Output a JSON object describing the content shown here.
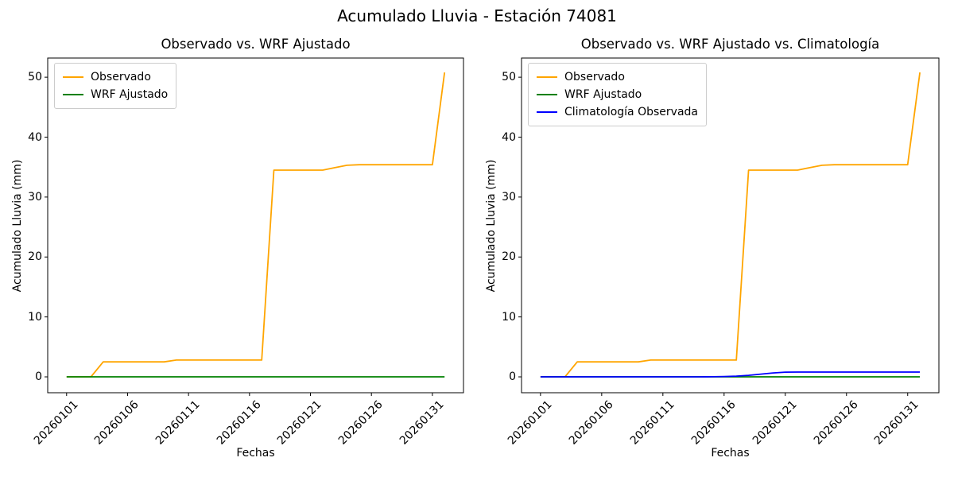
{
  "suptitle": "Acumulado Lluvia - Estación 74081",
  "chart_data": [
    {
      "type": "line",
      "title": "Observado vs. WRF Ajustado",
      "xlabel": "Fechas",
      "ylabel": "Acumulado Lluvia (mm)",
      "grid": false,
      "legend_position": "upper left",
      "x_tick_labels": [
        "20260101",
        "20260106",
        "20260111",
        "20260116",
        "20260121",
        "20260126",
        "20260131"
      ],
      "x_tick_indices": [
        0,
        5,
        10,
        15,
        20,
        25,
        30
      ],
      "y_ticks": [
        0,
        10,
        20,
        30,
        40,
        50
      ],
      "xlim": [
        -1.55,
        32.55
      ],
      "ylim": [
        -2.65,
        53.2
      ],
      "x": [
        "20260101",
        "20260102",
        "20260103",
        "20260104",
        "20260105",
        "20260106",
        "20260107",
        "20260108",
        "20260109",
        "20260110",
        "20260111",
        "20260112",
        "20260113",
        "20260114",
        "20260115",
        "20260116",
        "20260117",
        "20260118",
        "20260119",
        "20260120",
        "20260121",
        "20260122",
        "20260123",
        "20260124",
        "20260125",
        "20260126",
        "20260127",
        "20260128",
        "20260129",
        "20260130",
        "20260131",
        "20260201"
      ],
      "series": [
        {
          "name": "Observado",
          "color": "#FFA500",
          "values": [
            0,
            0,
            0,
            2.5,
            2.5,
            2.5,
            2.5,
            2.5,
            2.5,
            2.8,
            2.8,
            2.8,
            2.8,
            2.8,
            2.8,
            2.8,
            2.8,
            34.5,
            34.5,
            34.5,
            34.5,
            34.5,
            34.9,
            35.3,
            35.4,
            35.4,
            35.4,
            35.4,
            35.4,
            35.4,
            35.4,
            50.8
          ]
        },
        {
          "name": "WRF Ajustado",
          "color": "#008000",
          "values": [
            0,
            0,
            0,
            0,
            0,
            0,
            0,
            0,
            0,
            0,
            0,
            0,
            0,
            0,
            0,
            0,
            0,
            0,
            0,
            0,
            0,
            0,
            0,
            0,
            0,
            0,
            0,
            0,
            0,
            0,
            0,
            0
          ]
        }
      ]
    },
    {
      "type": "line",
      "title": "Observado vs. WRF Ajustado vs. Climatología",
      "xlabel": "Fechas",
      "ylabel": "Acumulado Lluvia (mm)",
      "grid": false,
      "legend_position": "upper left",
      "x_tick_labels": [
        "20260101",
        "20260106",
        "20260111",
        "20260116",
        "20260121",
        "20260126",
        "20260131"
      ],
      "x_tick_indices": [
        0,
        5,
        10,
        15,
        20,
        25,
        30
      ],
      "y_ticks": [
        0,
        10,
        20,
        30,
        40,
        50
      ],
      "xlim": [
        -1.55,
        32.55
      ],
      "ylim": [
        -2.65,
        53.2
      ],
      "x": [
        "20260101",
        "20260102",
        "20260103",
        "20260104",
        "20260105",
        "20260106",
        "20260107",
        "20260108",
        "20260109",
        "20260110",
        "20260111",
        "20260112",
        "20260113",
        "20260114",
        "20260115",
        "20260116",
        "20260117",
        "20260118",
        "20260119",
        "20260120",
        "20260121",
        "20260122",
        "20260123",
        "20260124",
        "20260125",
        "20260126",
        "20260127",
        "20260128",
        "20260129",
        "20260130",
        "20260131",
        "20260201"
      ],
      "series": [
        {
          "name": "Observado",
          "color": "#FFA500",
          "values": [
            0,
            0,
            0,
            2.5,
            2.5,
            2.5,
            2.5,
            2.5,
            2.5,
            2.8,
            2.8,
            2.8,
            2.8,
            2.8,
            2.8,
            2.8,
            2.8,
            34.5,
            34.5,
            34.5,
            34.5,
            34.5,
            34.9,
            35.3,
            35.4,
            35.4,
            35.4,
            35.4,
            35.4,
            35.4,
            35.4,
            50.8
          ]
        },
        {
          "name": "WRF Ajustado",
          "color": "#008000",
          "values": [
            0,
            0,
            0,
            0,
            0,
            0,
            0,
            0,
            0,
            0,
            0,
            0,
            0,
            0,
            0,
            0,
            0,
            0,
            0,
            0,
            0,
            0,
            0,
            0,
            0,
            0,
            0,
            0,
            0,
            0,
            0,
            0
          ]
        },
        {
          "name": "Climatología Observada",
          "color": "#0000FF",
          "values": [
            0,
            0,
            0,
            0,
            0,
            0,
            0,
            0,
            0,
            0,
            0,
            0,
            0,
            0,
            0.02,
            0.06,
            0.12,
            0.25,
            0.45,
            0.65,
            0.78,
            0.8,
            0.8,
            0.8,
            0.8,
            0.8,
            0.8,
            0.8,
            0.8,
            0.8,
            0.8,
            0.8
          ]
        }
      ]
    }
  ]
}
